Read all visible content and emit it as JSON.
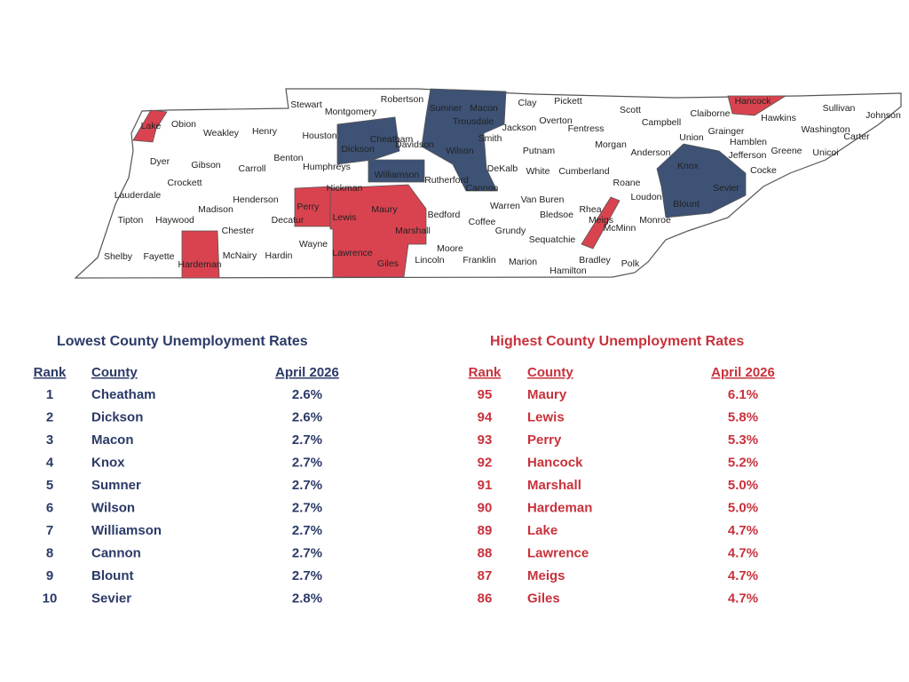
{
  "map": {
    "counties": [
      "Lake",
      "Obion",
      "Weakley",
      "Henry",
      "Stewart",
      "Montgomery",
      "Robertson",
      "Sumner",
      "Macon",
      "Clay",
      "Pickett",
      "Scott",
      "Campbell",
      "Claiborne",
      "Hancock",
      "Hawkins",
      "Sullivan",
      "Johnson",
      "Trousdale",
      "Jackson",
      "Overton",
      "Fentress",
      "Union",
      "Grainger",
      "Hamblen",
      "Washington",
      "Carter",
      "Greene",
      "Unicoi",
      "Houston",
      "Cheatham",
      "Davidson",
      "Dickson",
      "Smith",
      "Wilson",
      "Putnam",
      "Morgan",
      "Anderson",
      "Jefferson",
      "Knox",
      "Cocke",
      "Sevier",
      "Dyer",
      "Gibson",
      "Carroll",
      "Benton",
      "Humphreys",
      "Crockett",
      "Lauderdale",
      "Henderson",
      "Hickman",
      "Williamson",
      "Rutherford",
      "DeKalb",
      "White",
      "Cumberland",
      "Roane",
      "Loudon",
      "Blount",
      "Cannon",
      "Van Buren",
      "Warren",
      "Bledsoe",
      "Rhea",
      "Meigs",
      "McMinn",
      "Monroe",
      "Madison",
      "Tipton",
      "Haywood",
      "Decatur",
      "Perry",
      "Lewis",
      "Maury",
      "Marshall",
      "Bedford",
      "Coffee",
      "Grundy",
      "Sequatchie",
      "Chester",
      "Wayne",
      "Lawrence",
      "Giles",
      "Lincoln",
      "Moore",
      "Franklin",
      "Marion",
      "Hamilton",
      "Bradley",
      "Polk",
      "Shelby",
      "Fayette",
      "Hardeman",
      "McNairy",
      "Hardin"
    ]
  },
  "lowest": {
    "title": "Lowest County Unemployment Rates",
    "headers": [
      "Rank",
      "County",
      "April 2026"
    ],
    "rows": [
      [
        "1",
        "Cheatham",
        "2.6%"
      ],
      [
        "2",
        "Dickson",
        "2.6%"
      ],
      [
        "3",
        "Macon",
        "2.7%"
      ],
      [
        "4",
        "Knox",
        "2.7%"
      ],
      [
        "5",
        "Sumner",
        "2.7%"
      ],
      [
        "6",
        "Wilson",
        "2.7%"
      ],
      [
        "7",
        "Williamson",
        "2.7%"
      ],
      [
        "8",
        "Cannon",
        "2.7%"
      ],
      [
        "9",
        "Blount",
        "2.7%"
      ],
      [
        "10",
        "Sevier",
        "2.8%"
      ]
    ]
  },
  "highest": {
    "title": "Highest County Unemployment Rates",
    "headers": [
      "Rank",
      "County",
      "April 2026"
    ],
    "rows": [
      [
        "95",
        "Maury",
        "6.1%"
      ],
      [
        "94",
        "Lewis",
        "5.8%"
      ],
      [
        "93",
        "Perry",
        "5.3%"
      ],
      [
        "92",
        "Hancock",
        "5.2%"
      ],
      [
        "91",
        "Marshall",
        "5.0%"
      ],
      [
        "90",
        "Hardeman",
        "5.0%"
      ],
      [
        "89",
        "Lake",
        "4.7%"
      ],
      [
        "88",
        "Lawrence",
        "4.7%"
      ],
      [
        "87",
        "Meigs",
        "4.7%"
      ],
      [
        "86",
        "Giles",
        "4.7%"
      ]
    ]
  }
}
